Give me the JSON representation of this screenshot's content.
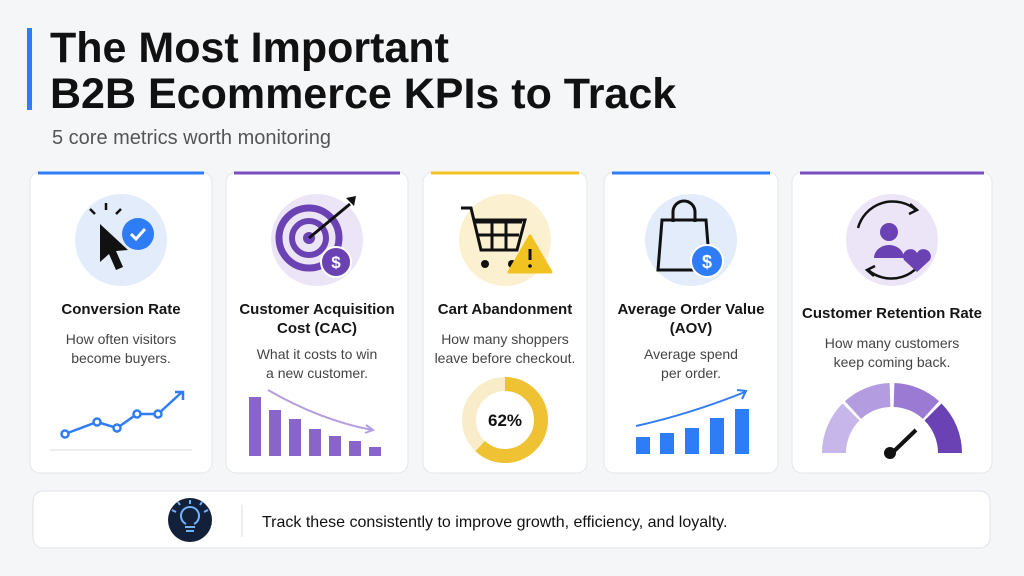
{
  "header": {
    "title_lines": [
      "The Most Important",
      "B2B Ecommerce KPIs to Track"
    ],
    "subtitle": "5 core metrics worth monitoring"
  },
  "cards": [
    {
      "title_lines": [
        "Conversion Rate"
      ],
      "description_lines": [
        "How often visitors",
        "become buyers."
      ]
    },
    {
      "title_lines": [
        "Customer Acquisition",
        "Cost (CAC)"
      ],
      "description_lines": [
        "What it costs to win",
        "a new customer."
      ]
    },
    {
      "title_lines": [
        "Cart Abandonment"
      ],
      "description_lines": [
        "How many shoppers",
        "leave before checkout."
      ],
      "donut": {
        "values": [
          62
        ],
        "value_labels": [
          "62%"
        ],
        "range": [
          0,
          100
        ]
      }
    },
    {
      "title_lines": [
        "Average Order Value",
        "(AOV)"
      ],
      "description_lines": [
        "Average spend",
        "per order."
      ]
    },
    {
      "title_lines": [
        "Customer Retention Rate"
      ],
      "description_lines": [
        "How many customers",
        "keep coming back."
      ]
    }
  ],
  "footer": {
    "text": "Track these consistently to improve growth, efficiency, and loyalty."
  }
}
